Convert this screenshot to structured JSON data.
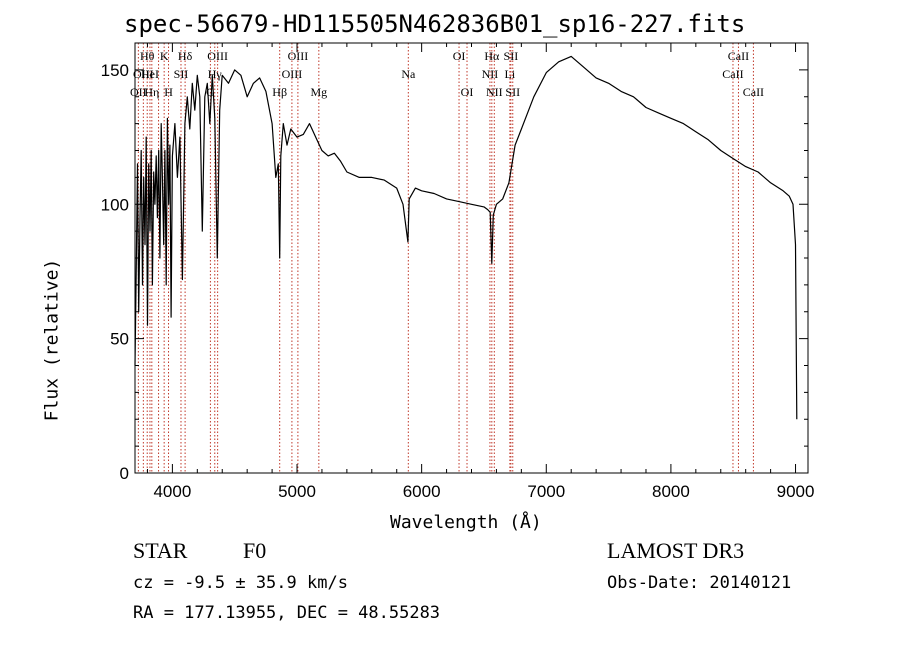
{
  "chart_data": {
    "type": "line",
    "title": "spec-56679-HD115505N462836B01_sp16-227.fits",
    "xlabel": "Wavelength (Å)",
    "ylabel": "Flux (relative)",
    "xlim": [
      3700,
      9100
    ],
    "ylim": [
      0,
      160
    ],
    "xticks": [
      4000,
      5000,
      6000,
      7000,
      8000,
      9000
    ],
    "yticks": [
      0,
      50,
      100,
      150
    ],
    "grid": false,
    "series": [
      {
        "name": "spectrum",
        "x": [
          3700,
          3710,
          3720,
          3730,
          3740,
          3750,
          3760,
          3770,
          3780,
          3790,
          3800,
          3810,
          3820,
          3830,
          3840,
          3850,
          3860,
          3870,
          3880,
          3890,
          3900,
          3910,
          3920,
          3930,
          3940,
          3950,
          3960,
          3970,
          3980,
          3990,
          4000,
          4020,
          4040,
          4060,
          4080,
          4100,
          4120,
          4140,
          4160,
          4180,
          4200,
          4220,
          4240,
          4260,
          4280,
          4300,
          4320,
          4340,
          4360,
          4380,
          4400,
          4450,
          4500,
          4550,
          4600,
          4650,
          4700,
          4750,
          4800,
          4830,
          4850,
          4861,
          4870,
          4890,
          4920,
          4950,
          5000,
          5050,
          5100,
          5150,
          5200,
          5250,
          5300,
          5350,
          5400,
          5500,
          5600,
          5700,
          5800,
          5850,
          5890,
          5900,
          5950,
          6000,
          6100,
          6200,
          6300,
          6400,
          6500,
          6530,
          6550,
          6563,
          6575,
          6600,
          6650,
          6700,
          6750,
          6800,
          6900,
          7000,
          7100,
          7200,
          7300,
          7400,
          7500,
          7600,
          7700,
          7800,
          7900,
          8000,
          8100,
          8200,
          8300,
          8400,
          8500,
          8600,
          8700,
          8800,
          8900,
          8950,
          8980,
          9000,
          9010
        ],
        "y": [
          40,
          75,
          115,
          60,
          95,
          120,
          70,
          110,
          85,
          125,
          55,
          115,
          90,
          120,
          70,
          112,
          100,
          118,
          95,
          120,
          80,
          130,
          110,
          85,
          120,
          70,
          132,
          100,
          122,
          58,
          118,
          130,
          110,
          125,
          72,
          130,
          140,
          128,
          145,
          135,
          148,
          140,
          90,
          140,
          145,
          130,
          148,
          132,
          80,
          135,
          148,
          145,
          150,
          148,
          140,
          145,
          147,
          142,
          130,
          110,
          115,
          80,
          118,
          130,
          122,
          128,
          125,
          126,
          130,
          125,
          120,
          118,
          119,
          116,
          112,
          110,
          110,
          109,
          106,
          100,
          86,
          102,
          106,
          105,
          104,
          102,
          101,
          100,
          99,
          98,
          97,
          78,
          96,
          100,
          102,
          108,
          122,
          128,
          140,
          149,
          153,
          155,
          151,
          147,
          145,
          142,
          140,
          136,
          134,
          132,
          130,
          127,
          124,
          120,
          117,
          114,
          112,
          108,
          105,
          103,
          100,
          85,
          20
        ]
      }
    ],
    "line_labels": [
      {
        "text": "Hθ",
        "x": 3798,
        "row": 0
      },
      {
        "text": "OII",
        "x": 3727,
        "row": 2
      },
      {
        "text": "OIII",
        "x": 3767,
        "row": 1
      },
      {
        "text": "HeI",
        "x": 3820,
        "row": 1
      },
      {
        "text": "Hη",
        "x": 3835,
        "row": 2
      },
      {
        "text": "K",
        "x": 3934,
        "row": 0
      },
      {
        "text": "SII",
        "x": 4069,
        "row": 1
      },
      {
        "text": "H",
        "x": 3969,
        "row": 2
      },
      {
        "text": "Hδ",
        "x": 4102,
        "row": 0
      },
      {
        "text": "OIII",
        "x": 4363,
        "row": 0
      },
      {
        "text": "Hγ",
        "x": 4340,
        "row": 1
      },
      {
        "text": "G",
        "x": 4305,
        "row": 2
      },
      {
        "text": "Hβ",
        "x": 4861,
        "row": 2
      },
      {
        "text": "OIII",
        "x": 4959,
        "row": 1
      },
      {
        "text": "OIII",
        "x": 5007,
        "row": 0
      },
      {
        "text": "Mg",
        "x": 5175,
        "row": 2
      },
      {
        "text": "Na",
        "x": 5893,
        "row": 1
      },
      {
        "text": "OI",
        "x": 6300,
        "row": 0
      },
      {
        "text": "OI",
        "x": 6364,
        "row": 2
      },
      {
        "text": "Hα",
        "x": 6563,
        "row": 0
      },
      {
        "text": "NII",
        "x": 6548,
        "row": 1
      },
      {
        "text": "NII",
        "x": 6583,
        "row": 2
      },
      {
        "text": "SII",
        "x": 6716,
        "row": 0
      },
      {
        "text": "Li",
        "x": 6708,
        "row": 1
      },
      {
        "text": "SII",
        "x": 6731,
        "row": 2
      },
      {
        "text": "CaII",
        "x": 8542,
        "row": 0
      },
      {
        "text": "CaII",
        "x": 8498,
        "row": 1
      },
      {
        "text": "CaII",
        "x": 8662,
        "row": 2
      }
    ],
    "line_markers": [
      3727,
      3767,
      3798,
      3820,
      3835,
      3889,
      3934,
      3969,
      4069,
      4102,
      4305,
      4340,
      4363,
      4861,
      4959,
      5007,
      5175,
      5893,
      6300,
      6364,
      6548,
      6563,
      6583,
      6708,
      6716,
      6731,
      8498,
      8542,
      8662
    ],
    "marker_color": "#c0392b",
    "line_color": "#000000"
  },
  "info": {
    "object_class": "STAR",
    "subclass": "F0",
    "survey": "LAMOST DR3",
    "cz": "cz = -9.5 ± 35.9 km/s",
    "obs_date": "Obs-Date: 20140121",
    "radec": "RA = 177.13955, DEC =  48.55283"
  }
}
